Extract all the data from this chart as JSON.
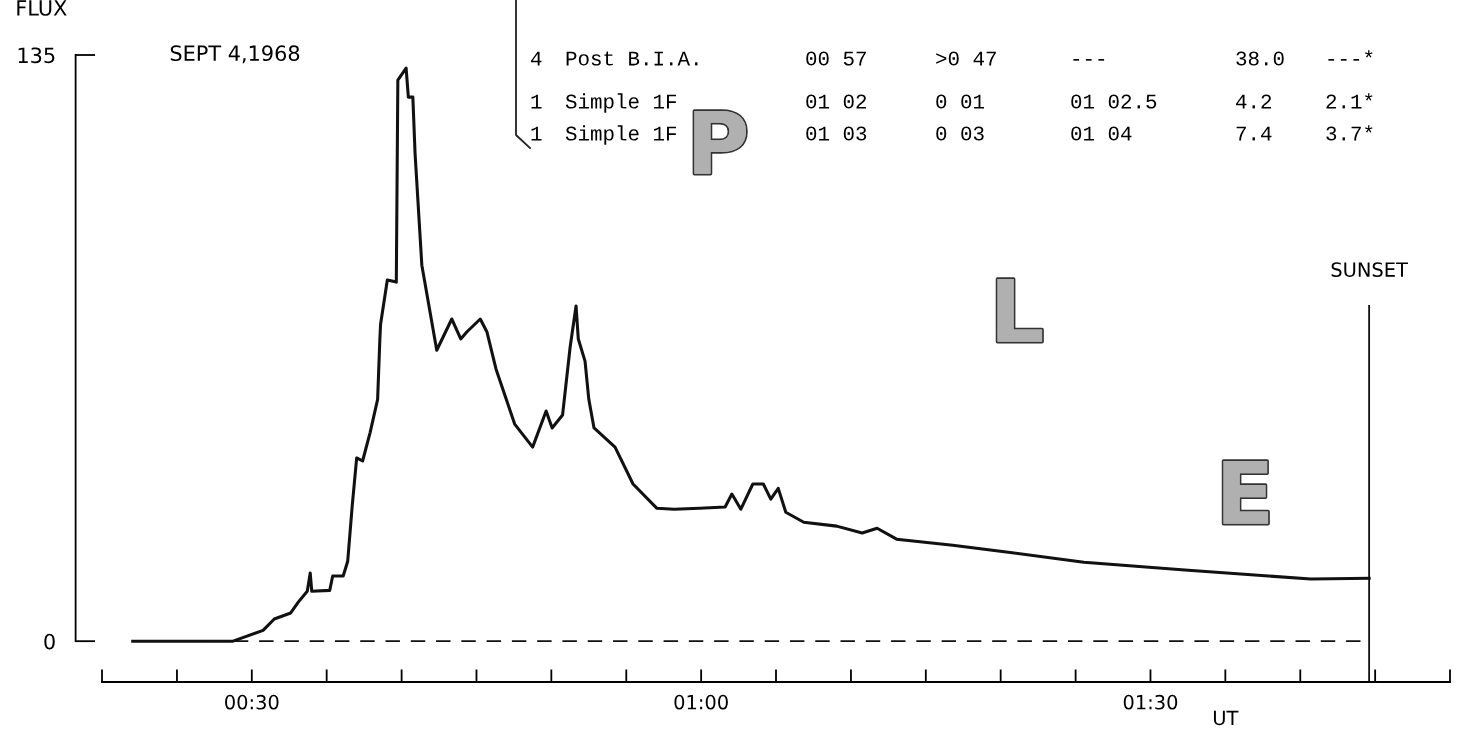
{
  "chart_data": {
    "type": "line",
    "title": "SEPT 4,1968",
    "ylabel": "FLUX",
    "xlabel": "UT",
    "x": [
      0.3675,
      0.4792,
      0.5125,
      0.525,
      0.5433,
      0.5517,
      0.5617,
      0.565,
      0.5667,
      0.5867,
      0.59,
      0.6017,
      0.6067,
      0.6117,
      0.6167,
      0.6233,
      0.6317,
      0.64,
      0.6425,
      0.6433,
      0.6508,
      0.6608,
      0.6625,
      0.6717,
      0.6742,
      0.6792,
      0.6817,
      0.6892,
      0.7058,
      0.7225,
      0.7325,
      0.7392,
      0.7542,
      0.7617,
      0.7717,
      0.7925,
      0.8125,
      0.8275,
      0.8342,
      0.8458,
      0.8542,
      0.8608,
      0.8633,
      0.8708,
      0.875,
      0.8808,
      0.9042,
      0.9242,
      0.9508,
      0.97,
      0.9983,
      1.0267,
      1.0342,
      1.0442,
      1.0575,
      1.0692,
      1.0775,
      1.0858,
      1.0942,
      1.1142,
      1.1508,
      1.1792,
      1.1958,
      1.2175,
      1.28,
      1.3417,
      1.4258,
      1.5383,
      1.6783,
      1.7433
    ],
    "series": [
      {
        "color": "#111111",
        "values": [
          0,
          0,
          2.5,
          5.1,
          6.5,
          9.0,
          11.5,
          15.7,
          11.5,
          11.7,
          15.0,
          15.0,
          18.4,
          31.1,
          42.2,
          41.5,
          48.1,
          55.7,
          69.6,
          73.0,
          83.2,
          82.7,
          129.2,
          132.0,
          125.3,
          125.3,
          112.2,
          86.6,
          67.0,
          74.2,
          69.6,
          71.2,
          74.2,
          71.2,
          62.7,
          50.0,
          44.7,
          53.0,
          49.1,
          52.1,
          67.7,
          77.2,
          69.6,
          64.5,
          55.7,
          49.1,
          44.7,
          36.2,
          30.6,
          30.4,
          30.6,
          30.9,
          33.9,
          30.4,
          36.2,
          36.2,
          32.7,
          35.2,
          29.7,
          27.4,
          26.5,
          24.9,
          26.0,
          23.5,
          22.1,
          20.5,
          18.2,
          16.4,
          14.3,
          14.5
        ]
      }
    ],
    "xlim": [
      0.3333,
      1.8333
    ],
    "xticks": [
      {
        "value": 0.3333,
        "label": null
      },
      {
        "value": 0.4167,
        "label": null
      },
      {
        "value": 0.5,
        "label": "00:30"
      },
      {
        "value": 0.5833,
        "label": null
      },
      {
        "value": 0.6667,
        "label": null
      },
      {
        "value": 0.75,
        "label": null
      },
      {
        "value": 0.8333,
        "label": null
      },
      {
        "value": 0.9167,
        "label": null
      },
      {
        "value": 1,
        "label": "01:00"
      },
      {
        "value": 1.0833,
        "label": null
      },
      {
        "value": 1.1667,
        "label": null
      },
      {
        "value": 1.25,
        "label": null
      },
      {
        "value": 1.3333,
        "label": null
      },
      {
        "value": 1.4167,
        "label": null
      },
      {
        "value": 1.5,
        "label": "01:30"
      },
      {
        "value": 1.5833,
        "label": null
      },
      {
        "value": 1.6667,
        "label": null
      },
      {
        "value": 1.75,
        "label": null
      },
      {
        "value": 1.8333,
        "label": null
      }
    ],
    "ylim": [
      -9.4,
      135
    ],
    "yticks": [
      0,
      135
    ],
    "grid": false,
    "legend": false,
    "marker": "none",
    "line_style": "solid",
    "ref_lines": [
      {
        "axis": "y",
        "value": 0,
        "label": null,
        "line_style": "dashed",
        "color": "#111111"
      },
      {
        "axis": "x",
        "value": 1.7433,
        "label": "SUNSET",
        "line_style": "solid",
        "color": "#111111"
      }
    ],
    "annotations": [
      "4  Post B.I.A.  00 57  >0 47  ---  38.0  ---*",
      "1  Simple 1F  01 02  0 01  01 02.5  4.2  2.1*",
      "1  Simple 1F  01 03  0 03  01 04  7.4  3.7*",
      "P",
      "L",
      "E"
    ]
  }
}
